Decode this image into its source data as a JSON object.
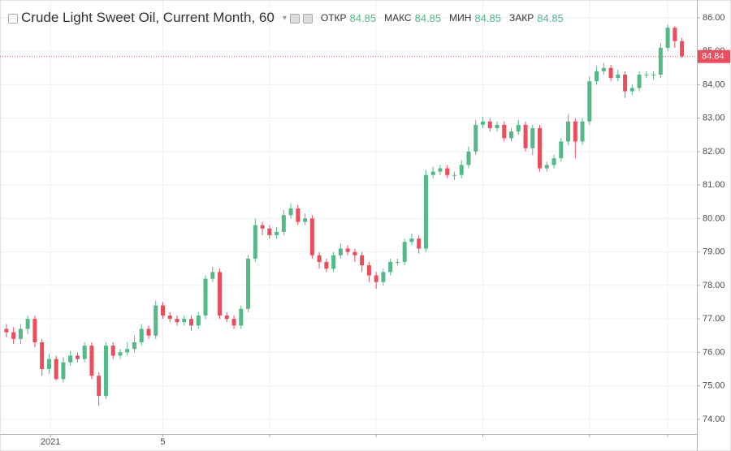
{
  "chart_data": {
    "type": "candlestick",
    "title": "Crude Light Sweet Oil, Current Month, 60",
    "legend": {
      "labels": [
        "ОТКР",
        "МАКС",
        "МИН",
        "ЗАКР"
      ],
      "values": [
        84.85,
        84.85,
        84.85,
        84.85
      ]
    },
    "up_color": "#53b987",
    "down_color": "#eb4d5c",
    "last_price": 84.84,
    "last_price_color": "#eb4d5c",
    "xlim": [
      -0.9,
      97.1
    ],
    "xticks": [
      {
        "value": 6.2,
        "label": "2021"
      },
      {
        "value": 22,
        "label": "5"
      },
      {
        "value": 37,
        "label": null
      },
      {
        "value": 52,
        "label": null
      },
      {
        "value": 67,
        "label": null
      },
      {
        "value": 82,
        "label": null
      },
      {
        "value": 93,
        "label": null
      }
    ],
    "ylim": [
      73.56,
      86.53
    ],
    "yticks": [
      {
        "value": 74,
        "label": "74.00"
      },
      {
        "value": 75,
        "label": "75.00"
      },
      {
        "value": 76,
        "label": "76.00"
      },
      {
        "value": 77,
        "label": "77.00"
      },
      {
        "value": 78,
        "label": "78.00"
      },
      {
        "value": 79,
        "label": "79.00"
      },
      {
        "value": 80,
        "label": "80.00"
      },
      {
        "value": 81,
        "label": "81.00"
      },
      {
        "value": 82,
        "label": "82.00"
      },
      {
        "value": 83,
        "label": "83.00"
      },
      {
        "value": 84,
        "label": "84.00"
      },
      {
        "value": 85,
        "label": "85.00"
      },
      {
        "value": 86,
        "label": "86.00"
      }
    ],
    "grid": true,
    "open": [
      76.7,
      76.6,
      76.4,
      76.7,
      77.0,
      76.3,
      75.5,
      75.8,
      75.2,
      75.7,
      75.9,
      75.8,
      76.2,
      75.3,
      74.7,
      76.2,
      75.9,
      76.0,
      76.1,
      76.3,
      76.7,
      76.5,
      77.4,
      77.1,
      77.0,
      76.9,
      77.0,
      76.8,
      77.1,
      78.2,
      78.4,
      77.1,
      77.0,
      76.8,
      77.3,
      78.8,
      79.8,
      79.7,
      79.5,
      79.6,
      80.1,
      80.3,
      79.9,
      80.0,
      78.9,
      78.7,
      78.5,
      78.9,
      79.1,
      79.0,
      78.9,
      78.6,
      78.3,
      78.1,
      78.4,
      78.7,
      78.7,
      79.3,
      79.4,
      79.1,
      81.3,
      81.4,
      81.5,
      81.3,
      81.3,
      81.6,
      82.0,
      82.8,
      82.9,
      82.7,
      82.8,
      82.4,
      82.6,
      82.8,
      82.1,
      82.7,
      81.5,
      81.6,
      81.8,
      82.3,
      82.9,
      82.3,
      82.9,
      84.1,
      84.4,
      84.5,
      84.2,
      84.3,
      83.8,
      83.9,
      84.3,
      84.3,
      84.3,
      85.1,
      85.7,
      85.3
    ],
    "high": [
      76.85,
      76.75,
      76.85,
      77.1,
      77.1,
      76.4,
      75.95,
      75.9,
      75.85,
      76.05,
      76.0,
      76.3,
      76.3,
      75.4,
      76.3,
      76.3,
      76.1,
      76.3,
      76.5,
      76.85,
      76.8,
      77.55,
      77.5,
      77.2,
      77.1,
      77.1,
      77.1,
      77.2,
      78.3,
      78.55,
      78.5,
      77.2,
      77.1,
      77.4,
      78.9,
      80.0,
      79.9,
      79.8,
      79.75,
      80.25,
      80.45,
      80.4,
      80.15,
      80.1,
      79.0,
      78.8,
      79.0,
      79.25,
      79.2,
      79.1,
      79.0,
      78.7,
      78.4,
      78.5,
      78.8,
      78.8,
      79.4,
      79.55,
      79.5,
      81.45,
      81.55,
      81.6,
      81.6,
      81.4,
      81.75,
      82.15,
      82.95,
      83.05,
      83.0,
      82.9,
      82.9,
      82.7,
      82.95,
      82.9,
      82.8,
      82.8,
      81.7,
      81.9,
      82.4,
      83.1,
      83.0,
      83.0,
      84.25,
      84.55,
      84.65,
      84.6,
      84.45,
      84.4,
      84.0,
      84.4,
      84.4,
      84.4,
      85.25,
      85.8,
      85.75,
      85.4
    ],
    "low": [
      76.45,
      76.25,
      76.25,
      76.55,
      76.15,
      75.3,
      75.35,
      75.15,
      75.1,
      75.6,
      75.7,
      75.7,
      75.2,
      74.4,
      74.6,
      75.8,
      75.8,
      75.9,
      76.0,
      76.2,
      76.4,
      76.4,
      77.0,
      76.9,
      76.8,
      76.8,
      76.65,
      76.7,
      77.0,
      78.1,
      77.0,
      76.9,
      76.7,
      76.7,
      77.2,
      78.7,
      79.5,
      79.4,
      79.4,
      79.5,
      80.0,
      79.8,
      79.8,
      78.8,
      78.5,
      78.4,
      78.4,
      78.8,
      78.9,
      78.7,
      78.4,
      78.1,
      77.9,
      78.0,
      78.3,
      78.6,
      78.6,
      79.2,
      78.95,
      79.0,
      81.2,
      81.3,
      81.2,
      81.15,
      81.2,
      81.5,
      81.9,
      82.7,
      82.6,
      82.6,
      82.3,
      82.3,
      82.5,
      82.0,
      81.9,
      81.4,
      81.4,
      81.5,
      81.7,
      82.2,
      81.8,
      82.2,
      82.8,
      84.0,
      84.3,
      84.1,
      84.1,
      83.6,
      83.7,
      83.8,
      84.2,
      84.15,
      84.2,
      85.0,
      85.1,
      84.8
    ],
    "close": [
      76.6,
      76.4,
      76.7,
      77.0,
      76.3,
      75.5,
      75.8,
      75.2,
      75.7,
      75.9,
      75.8,
      76.2,
      75.3,
      74.7,
      76.2,
      75.9,
      76.0,
      76.1,
      76.3,
      76.7,
      76.5,
      77.4,
      77.1,
      77.0,
      76.9,
      77.0,
      76.8,
      77.1,
      78.2,
      78.4,
      77.1,
      77.0,
      76.8,
      77.3,
      78.8,
      79.8,
      79.7,
      79.5,
      79.6,
      80.1,
      80.3,
      79.9,
      80.0,
      78.9,
      78.7,
      78.5,
      78.9,
      79.1,
      79.0,
      78.9,
      78.6,
      78.3,
      78.1,
      78.4,
      78.7,
      78.7,
      79.3,
      79.4,
      79.1,
      81.3,
      81.4,
      81.5,
      81.3,
      81.3,
      81.6,
      82.0,
      82.8,
      82.9,
      82.7,
      82.8,
      82.4,
      82.6,
      82.8,
      82.1,
      82.7,
      81.5,
      81.6,
      81.8,
      82.3,
      82.9,
      82.3,
      82.9,
      84.1,
      84.4,
      84.5,
      84.2,
      84.3,
      83.8,
      83.9,
      84.3,
      84.3,
      84.3,
      85.1,
      85.7,
      85.3,
      84.85
    ]
  }
}
